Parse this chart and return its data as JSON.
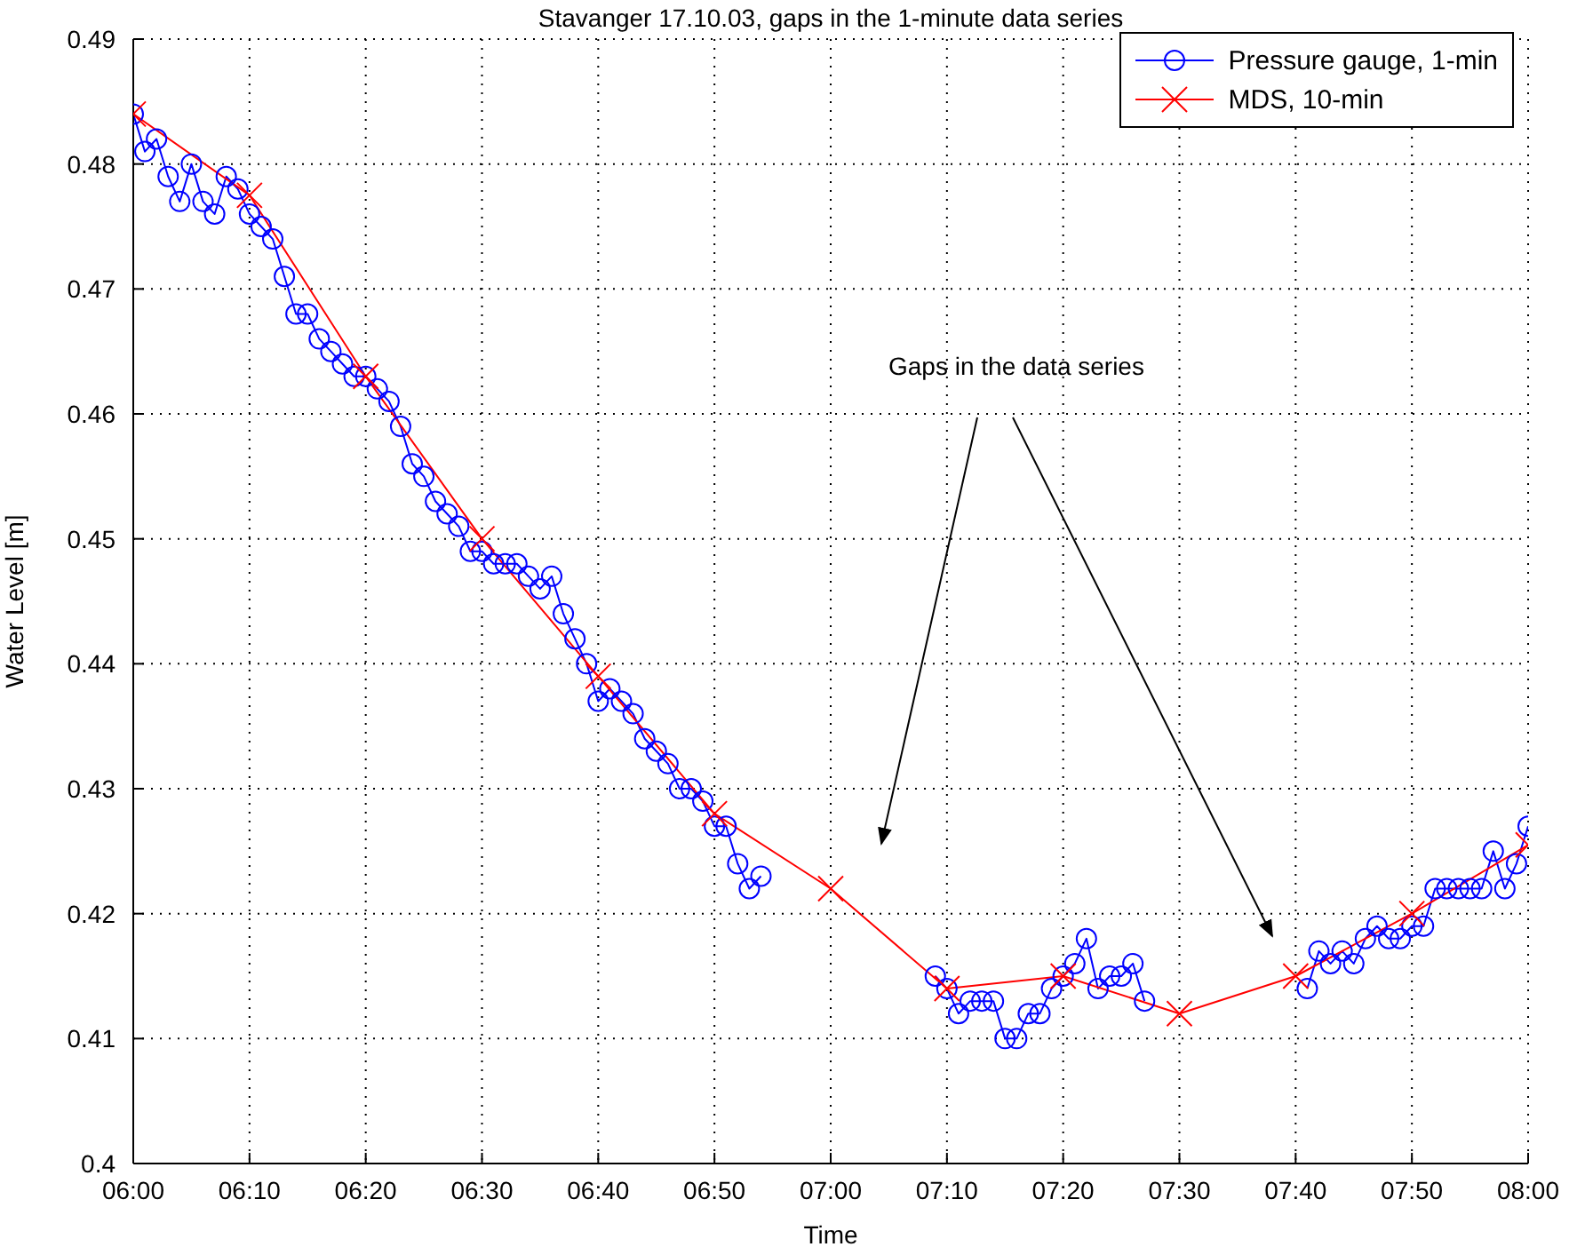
{
  "chart_data": {
    "type": "line",
    "title": "Stavanger 17.10.03, gaps in the 1-minute data series",
    "xlabel": "Time",
    "ylabel": "Water Level [m]",
    "annotations": [
      "Gaps in the data series"
    ],
    "xlim": [
      "--10-17T06:00",
      "--10-17T08:00"
    ],
    "xticks": [
      {
        "value": "--10-17T06:00",
        "label": "06:00"
      },
      {
        "value": "--10-17T06:10",
        "label": "06:10"
      },
      {
        "value": "--10-17T06:20",
        "label": "06:20"
      },
      {
        "value": "--10-17T06:30",
        "label": "06:30"
      },
      {
        "value": "--10-17T06:40",
        "label": "06:40"
      },
      {
        "value": "--10-17T06:50",
        "label": "06:50"
      },
      {
        "value": "--10-17T07:00",
        "label": "07:00"
      },
      {
        "value": "--10-17T07:10",
        "label": "07:10"
      },
      {
        "value": "--10-17T07:20",
        "label": "07:20"
      },
      {
        "value": "--10-17T07:30",
        "label": "07:30"
      },
      {
        "value": "--10-17T07:40",
        "label": "07:40"
      },
      {
        "value": "--10-17T07:50",
        "label": "07:50"
      },
      {
        "value": "--10-17T08:00",
        "label": "08:00"
      }
    ],
    "ylim": [
      0.4,
      0.49
    ],
    "yticks": [
      0.4,
      0.41,
      0.42,
      0.43,
      0.44,
      0.45,
      0.46,
      0.47,
      0.48,
      0.49
    ],
    "grid": true,
    "legend": "top right",
    "line_style": "solid",
    "series": [
      {
        "name": "Pressure gauge, 1-min",
        "color": "#0000ff",
        "marker": "circle",
        "x": [
          "--10-17T06:00",
          "--10-17T06:01",
          "--10-17T06:02",
          "--10-17T06:03",
          "--10-17T06:04",
          "--10-17T06:05",
          "--10-17T06:06",
          "--10-17T06:07",
          "--10-17T06:08",
          "--10-17T06:09",
          "--10-17T06:10",
          "--10-17T06:11",
          "--10-17T06:12",
          "--10-17T06:13",
          "--10-17T06:14",
          "--10-17T06:15",
          "--10-17T06:16",
          "--10-17T06:17",
          "--10-17T06:18",
          "--10-17T06:19",
          "--10-17T06:20",
          "--10-17T06:21",
          "--10-17T06:22",
          "--10-17T06:23",
          "--10-17T06:24",
          "--10-17T06:25",
          "--10-17T06:26",
          "--10-17T06:27",
          "--10-17T06:28",
          "--10-17T06:29",
          "--10-17T06:30",
          "--10-17T06:31",
          "--10-17T06:32",
          "--10-17T06:33",
          "--10-17T06:34",
          "--10-17T06:35",
          "--10-17T06:36",
          "--10-17T06:37",
          "--10-17T06:38",
          "--10-17T06:39",
          "--10-17T06:40",
          "--10-17T06:41",
          "--10-17T06:42",
          "--10-17T06:43",
          "--10-17T06:44",
          "--10-17T06:45",
          "--10-17T06:46",
          "--10-17T06:47",
          "--10-17T06:48",
          "--10-17T06:49",
          "--10-17T06:50",
          "--10-17T06:51",
          "--10-17T06:52",
          "--10-17T06:53",
          "--10-17T06:54",
          "--10-17T07:00",
          "--10-17T07:09",
          "--10-17T07:10",
          "--10-17T07:11",
          "--10-17T07:12",
          "--10-17T07:13",
          "--10-17T07:14",
          "--10-17T07:15",
          "--10-17T07:16",
          "--10-17T07:17",
          "--10-17T07:18",
          "--10-17T07:19",
          "--10-17T07:20",
          "--10-17T07:21",
          "--10-17T07:22",
          "--10-17T07:23",
          "--10-17T07:24",
          "--10-17T07:25",
          "--10-17T07:26",
          "--10-17T07:27",
          "--10-17T07:34",
          "--10-17T07:41",
          "--10-17T07:42",
          "--10-17T07:43",
          "--10-17T07:44",
          "--10-17T07:45",
          "--10-17T07:46",
          "--10-17T07:47",
          "--10-17T07:48",
          "--10-17T07:49",
          "--10-17T07:50",
          "--10-17T07:51",
          "--10-17T07:52",
          "--10-17T07:53",
          "--10-17T07:54",
          "--10-17T07:55",
          "--10-17T07:56",
          "--10-17T07:57",
          "--10-17T07:58",
          "--10-17T07:59",
          "--10-17T08:00"
        ],
        "values": [
          0.484,
          0.481,
          0.482,
          0.479,
          0.477,
          0.48,
          0.477,
          0.476,
          0.479,
          0.478,
          0.476,
          0.475,
          0.474,
          0.471,
          0.468,
          0.468,
          0.466,
          0.465,
          0.464,
          0.463,
          0.463,
          0.462,
          0.461,
          0.459,
          0.456,
          0.455,
          0.453,
          0.452,
          0.451,
          0.449,
          0.449,
          0.448,
          0.448,
          0.448,
          0.447,
          0.446,
          0.447,
          0.444,
          0.442,
          0.44,
          0.437,
          0.438,
          0.437,
          0.436,
          0.434,
          0.433,
          0.432,
          0.43,
          0.43,
          0.429,
          0.427,
          0.427,
          0.424,
          0.422,
          0.423,
          null,
          0.415,
          0.414,
          0.412,
          0.413,
          0.413,
          0.413,
          0.41,
          0.41,
          0.412,
          0.412,
          0.414,
          0.415,
          0.416,
          0.418,
          0.414,
          0.415,
          0.415,
          0.416,
          0.413,
          null,
          0.414,
          0.417,
          0.416,
          0.417,
          0.416,
          0.418,
          0.419,
          0.418,
          0.418,
          0.419,
          0.419,
          0.422,
          0.422,
          0.422,
          0.422,
          0.422,
          0.425,
          0.422,
          0.424,
          0.427
        ]
      },
      {
        "name": "MDS, 10-min",
        "color": "#ff0000",
        "marker": "cross",
        "x": [
          "--10-17T06:00",
          "--10-17T06:10",
          "--10-17T06:20",
          "--10-17T06:30",
          "--10-17T06:40",
          "--10-17T06:50",
          "--10-17T07:00",
          "--10-17T07:10",
          "--10-17T07:20",
          "--10-17T07:30",
          "--10-17T07:40",
          "--10-17T07:50",
          "--10-17T08:00"
        ],
        "values": [
          0.484,
          0.4775,
          0.463,
          0.45,
          0.439,
          0.428,
          0.422,
          0.414,
          0.415,
          0.412,
          0.415,
          0.42,
          0.4255
        ]
      }
    ]
  }
}
